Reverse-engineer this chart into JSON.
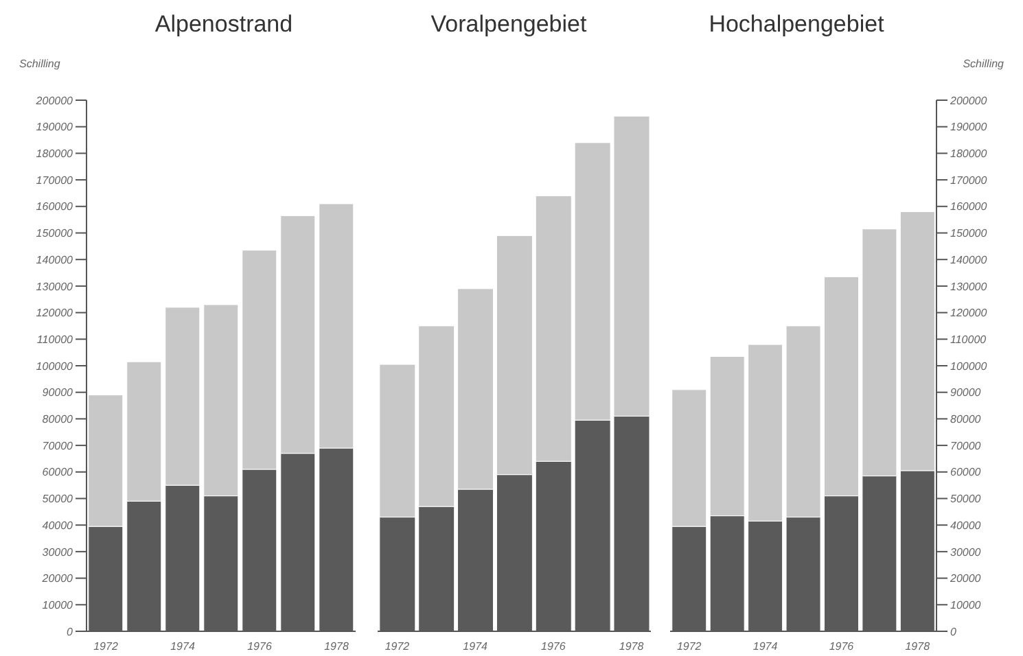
{
  "chart_data": [
    {
      "type": "bar",
      "title": "Alpenostrand",
      "ylabel": "Schilling",
      "stacked": true,
      "categories": [
        "1972",
        null,
        "1974",
        null,
        "1976",
        null,
        "1978"
      ],
      "ylim": [
        0,
        200000
      ],
      "yticks": [
        0,
        10000,
        20000,
        30000,
        40000,
        50000,
        60000,
        70000,
        80000,
        90000,
        100000,
        110000,
        120000,
        130000,
        140000,
        150000,
        160000,
        170000,
        180000,
        190000,
        200000
      ],
      "series": [
        {
          "color": "#5a5a5a",
          "values": [
            39500,
            49000,
            55000,
            51000,
            61000,
            67000,
            69000
          ]
        },
        {
          "color": "#c8c8c8",
          "values": [
            49500,
            52500,
            67000,
            72000,
            82500,
            89500,
            92000
          ]
        }
      ]
    },
    {
      "type": "bar",
      "title": "Voralpengebiet",
      "stacked": true,
      "categories": [
        "1972",
        null,
        "1974",
        null,
        "1976",
        null,
        "1978"
      ],
      "ylim": [
        0,
        200000
      ],
      "tick_labels": "x",
      "series": [
        {
          "color": "#5a5a5a",
          "values": [
            43000,
            47000,
            53500,
            59000,
            64000,
            79500,
            81000
          ]
        },
        {
          "color": "#c8c8c8",
          "values": [
            57500,
            68000,
            75500,
            90000,
            100000,
            104500,
            113000
          ]
        }
      ]
    },
    {
      "type": "bar",
      "title": "Hochalpengebiet",
      "y2label": "Schilling",
      "stacked": true,
      "categories": [
        "1972",
        null,
        "1974",
        null,
        "1976",
        null,
        "1978"
      ],
      "y2lim": [
        0,
        200000
      ],
      "y2ticks": [
        0,
        10000,
        20000,
        30000,
        40000,
        50000,
        60000,
        70000,
        80000,
        90000,
        100000,
        110000,
        120000,
        130000,
        140000,
        150000,
        160000,
        170000,
        180000,
        190000,
        200000
      ],
      "series": [
        {
          "color": "#5a5a5a",
          "axis": "y2",
          "values": [
            39500,
            43500,
            41500,
            43000,
            51000,
            58500,
            60500
          ]
        },
        {
          "color": "#c8c8c8",
          "axis": "y2",
          "values": [
            51500,
            60000,
            66500,
            72000,
            82500,
            93000,
            97500
          ]
        }
      ]
    }
  ]
}
